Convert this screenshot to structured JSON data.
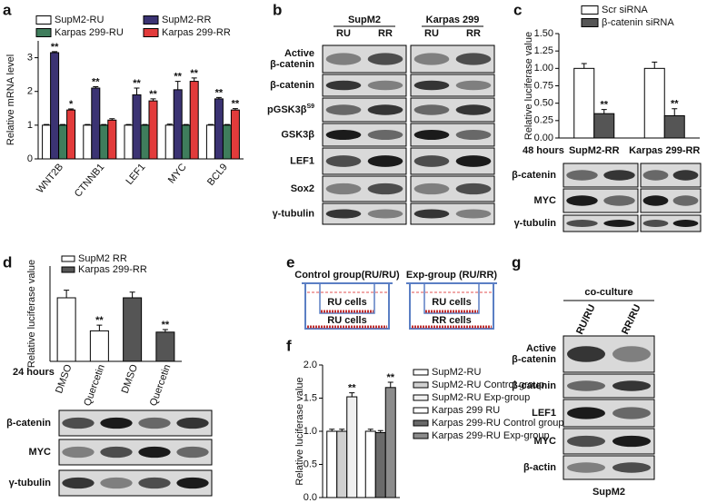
{
  "chart_data": [
    {
      "type": "bar",
      "label": "a",
      "y_label": "Relative mRNA level",
      "categories": [
        "WNT2B",
        "CTNNB1",
        "LEF1",
        "MYC",
        "BCL9"
      ],
      "series": [
        {
          "name": "SupM2-RU",
          "color": "#ffffff",
          "values": [
            1,
            1,
            1,
            1,
            1
          ],
          "errors": [
            0.02,
            0.02,
            0.02,
            0.03,
            0.02
          ],
          "significance": [
            null,
            null,
            null,
            null,
            null
          ]
        },
        {
          "name": "SupM2-RR",
          "color": "#3b3373",
          "values": [
            3.15,
            2.1,
            1.9,
            2.05,
            1.78
          ],
          "errors": [
            0.03,
            0.04,
            0.2,
            0.25,
            0.04
          ],
          "significance": [
            "**",
            "**",
            "**",
            "**",
            "**"
          ]
        },
        {
          "name": "Karpas 299-RU",
          "color": "#3f7d5c",
          "values": [
            1,
            1,
            1,
            1,
            1
          ],
          "errors": [
            0.02,
            0.02,
            0.02,
            0.02,
            0.02
          ],
          "significance": [
            null,
            null,
            null,
            null,
            null
          ]
        },
        {
          "name": "Karpas 299-RR",
          "color": "#e23b3b",
          "values": [
            1.45,
            1.15,
            1.72,
            2.3,
            1.45
          ],
          "errors": [
            0.03,
            0.04,
            0.06,
            0.1,
            0.04
          ],
          "significance": [
            "*",
            null,
            "**",
            "**",
            "**"
          ]
        }
      ],
      "ylim": [
        0,
        3.5
      ],
      "yticks": [
        0,
        1,
        2,
        3
      ]
    },
    {
      "type": "bar",
      "label": "c",
      "y_label": "Relative luciferase value",
      "time_label": "48 hours",
      "categories": [
        "SupM2-RR",
        "Karpas 299-RR"
      ],
      "series": [
        {
          "name": "Scr siRNA",
          "color": "#ffffff",
          "values": [
            1.0,
            1.0
          ],
          "errors": [
            0.07,
            0.09
          ],
          "significance": [
            null,
            null
          ]
        },
        {
          "name": "β-catenin siRNA",
          "color": "#555555",
          "values": [
            0.35,
            0.32
          ],
          "errors": [
            0.06,
            0.1
          ],
          "significance": [
            "**",
            "**"
          ]
        }
      ],
      "ylim": [
        0,
        1.5
      ],
      "yticks": [
        {
          "value": 0,
          "label": "0.00"
        },
        {
          "value": 0.25,
          "label": "0.25"
        },
        {
          "value": 0.5,
          "label": "0.50"
        },
        {
          "value": 0.75,
          "label": "0.75"
        },
        {
          "value": 1,
          "label": "1.00"
        },
        {
          "value": 1.25,
          "label": "1.25"
        },
        {
          "value": 1.5,
          "label": "1.50"
        }
      ]
    },
    {
      "type": "bar",
      "label": "d",
      "y_label": "Relative luciferase value",
      "time_label": "24 hours",
      "categories": [
        "DMSO",
        "Quercetin",
        "DMSO",
        "Quercetin"
      ],
      "series": [
        {
          "name": "SupM2 RR",
          "color": "#ffffff",
          "values": [
            1.0,
            0.48,
            null,
            null
          ],
          "errors": [
            0.12,
            0.09,
            null,
            null
          ],
          "significance": [
            null,
            "**",
            null,
            null
          ]
        },
        {
          "name": "Karpas 299-RR",
          "color": "#555555",
          "values": [
            null,
            null,
            1.0,
            0.46
          ],
          "errors": [
            null,
            null,
            0.09,
            0.04
          ],
          "significance": [
            null,
            null,
            null,
            "**"
          ]
        }
      ],
      "ylim": [
        0,
        1.5
      ]
    },
    {
      "type": "bar",
      "label": "f",
      "y_label": "Relative luciferase value",
      "categories": [
        null,
        null
      ],
      "series": [
        {
          "name": "SupM2-RU",
          "color": "#ffffff",
          "values": [
            1.0,
            null
          ],
          "errors": [
            0.03,
            null
          ],
          "significance": [
            null,
            null
          ]
        },
        {
          "name": "SupM2-RU Control group",
          "color": "#d0d0d0",
          "values": [
            1.0,
            null
          ],
          "errors": [
            0.03,
            null
          ],
          "significance": [
            null,
            null
          ]
        },
        {
          "name": "SupM2-RU Exp-group",
          "color": "#f0f0f0",
          "values": [
            1.52,
            null
          ],
          "errors": [
            0.06,
            null
          ],
          "significance": [
            "**",
            null
          ]
        },
        {
          "name": "Karpas 299 RU",
          "color": "#ffffff",
          "values": [
            null,
            1.0
          ],
          "errors": [
            null,
            0.03
          ],
          "significance": [
            null,
            null
          ]
        },
        {
          "name": "Karpas 299-RU Control group",
          "color": "#6a6a6a",
          "values": [
            null,
            0.98
          ],
          "errors": [
            null,
            0.03
          ],
          "significance": [
            null,
            null
          ]
        },
        {
          "name": "Karpas 299-RU Exp-group",
          "color": "#8c8c8c",
          "values": [
            null,
            1.66
          ],
          "errors": [
            null,
            0.08
          ],
          "significance": [
            null,
            "**"
          ]
        }
      ],
      "ylim": [
        0,
        2.0
      ],
      "yticks": [
        {
          "value": 0,
          "label": "0.0"
        },
        {
          "value": 0.5,
          "label": "0.5"
        },
        {
          "value": 1,
          "label": "1.0"
        },
        {
          "value": 1.5,
          "label": "1.5"
        },
        {
          "value": 2,
          "label": "2.0"
        }
      ]
    }
  ],
  "blots": [
    {
      "label": "b",
      "groups": [
        {
          "name": "SupM2",
          "lanes": [
            "RU",
            "RR"
          ]
        },
        {
          "name": "Karpas 299",
          "lanes": [
            "RU",
            "RR"
          ]
        }
      ],
      "rows": [
        {
          "lines": [
            "Active",
            "β-catenin"
          ]
        },
        {
          "lines": [
            "β-catenin"
          ]
        },
        {
          "lines": [
            "pGSK3β"
          ],
          "sup": "S9"
        },
        {
          "lines": [
            "GSK3β"
          ]
        },
        {
          "lines": [
            "LEF1"
          ]
        },
        {
          "lines": [
            "Sox2"
          ]
        },
        {
          "lines": [
            "γ-tubulin"
          ]
        }
      ]
    },
    {
      "rows": [
        {
          "lines": [
            "β-catenin"
          ]
        },
        {
          "lines": [
            "MYC"
          ]
        },
        {
          "lines": [
            "γ-tubulin"
          ]
        }
      ]
    },
    {
      "rows": [
        {
          "lines": [
            "β-catenin"
          ]
        },
        {
          "lines": [
            "MYC"
          ]
        },
        {
          "lines": [
            "γ-tubulin"
          ]
        }
      ]
    },
    {
      "label": "g",
      "header": "co-culture",
      "footer": "SupM2",
      "groups": [
        {
          "lanes": [
            "RU/RU",
            "RR/RU"
          ]
        }
      ],
      "rows": [
        {
          "lines": [
            "Active",
            "β-catenin"
          ]
        },
        {
          "lines": [
            "β-catenin"
          ]
        },
        {
          "lines": [
            "LEF1"
          ]
        },
        {
          "lines": [
            "MYC"
          ]
        },
        {
          "lines": [
            "β-actin"
          ]
        }
      ]
    }
  ],
  "diagram": {
    "label": "e",
    "groups": [
      {
        "title": "Control group(RU/RU)",
        "insert": "RU cells",
        "bottom": "RU cells"
      },
      {
        "title": "Exp-group (RU/RR)",
        "insert": "RU cells",
        "bottom": "RR cells"
      }
    ]
  }
}
